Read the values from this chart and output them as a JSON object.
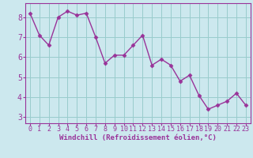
{
  "x": [
    0,
    1,
    2,
    3,
    4,
    5,
    6,
    7,
    8,
    9,
    10,
    11,
    12,
    13,
    14,
    15,
    16,
    17,
    18,
    19,
    20,
    21,
    22,
    23
  ],
  "y": [
    8.2,
    7.1,
    6.6,
    8.0,
    8.3,
    8.1,
    8.2,
    7.0,
    5.7,
    6.1,
    6.1,
    6.6,
    7.1,
    5.6,
    5.9,
    5.6,
    4.8,
    5.1,
    4.1,
    3.4,
    3.6,
    3.8,
    4.2,
    3.6
  ],
  "line_color": "#993399",
  "marker": "D",
  "marker_size": 2.5,
  "linewidth": 1.0,
  "bg_color": "#cce8ee",
  "grid_color": "#99cccc",
  "xlabel": "Windchill (Refroidissement éolien,°C)",
  "xlabel_color": "#993399",
  "tick_color": "#993399",
  "spine_color": "#993399",
  "ylim": [
    2.7,
    8.7
  ],
  "xlim": [
    -0.5,
    23.5
  ],
  "yticks": [
    3,
    4,
    5,
    6,
    7,
    8
  ],
  "xticks": [
    0,
    1,
    2,
    3,
    4,
    5,
    6,
    7,
    8,
    9,
    10,
    11,
    12,
    13,
    14,
    15,
    16,
    17,
    18,
    19,
    20,
    21,
    22,
    23
  ],
  "tick_fontsize": 6.0,
  "xlabel_fontsize": 6.5,
  "ytick_fontsize": 7.0
}
